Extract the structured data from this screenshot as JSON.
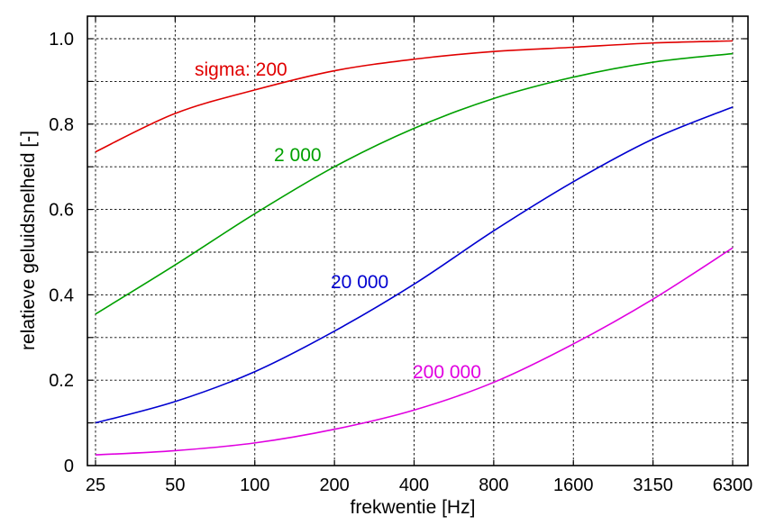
{
  "chart_data": {
    "type": "line",
    "title": "",
    "xlabel": "frekwentie [Hz]",
    "ylabel": "relatieve geluidsnelheid  [-]",
    "x_scale": "log",
    "x_ticks": [
      "25",
      "50",
      "100",
      "200",
      "400",
      "800",
      "1600",
      "3150",
      "6300"
    ],
    "y_ticks": [
      "0",
      "0.2",
      "0.4",
      "0.6",
      "0.8",
      "1.0"
    ],
    "ylim": [
      0,
      1.0
    ],
    "xlim": [
      21,
      7800
    ],
    "grid": true,
    "x": [
      25,
      50,
      100,
      200,
      400,
      800,
      1600,
      3150,
      6300
    ],
    "series": [
      {
        "name": "sigma: 200",
        "color": "#e00000",
        "values": [
          0.735,
          0.825,
          0.88,
          0.925,
          0.952,
          0.97,
          0.98,
          0.99,
          0.995
        ]
      },
      {
        "name": "2 000",
        "color": "#00a000",
        "values": [
          0.355,
          0.47,
          0.59,
          0.7,
          0.79,
          0.86,
          0.91,
          0.945,
          0.965
        ]
      },
      {
        "name": "20 000",
        "color": "#0000d0",
        "values": [
          0.1,
          0.15,
          0.22,
          0.315,
          0.425,
          0.55,
          0.665,
          0.765,
          0.84
        ]
      },
      {
        "name": "200 000",
        "color": "#e000e0",
        "values": [
          0.025,
          0.035,
          0.053,
          0.085,
          0.13,
          0.195,
          0.285,
          0.39,
          0.51
        ]
      }
    ]
  }
}
